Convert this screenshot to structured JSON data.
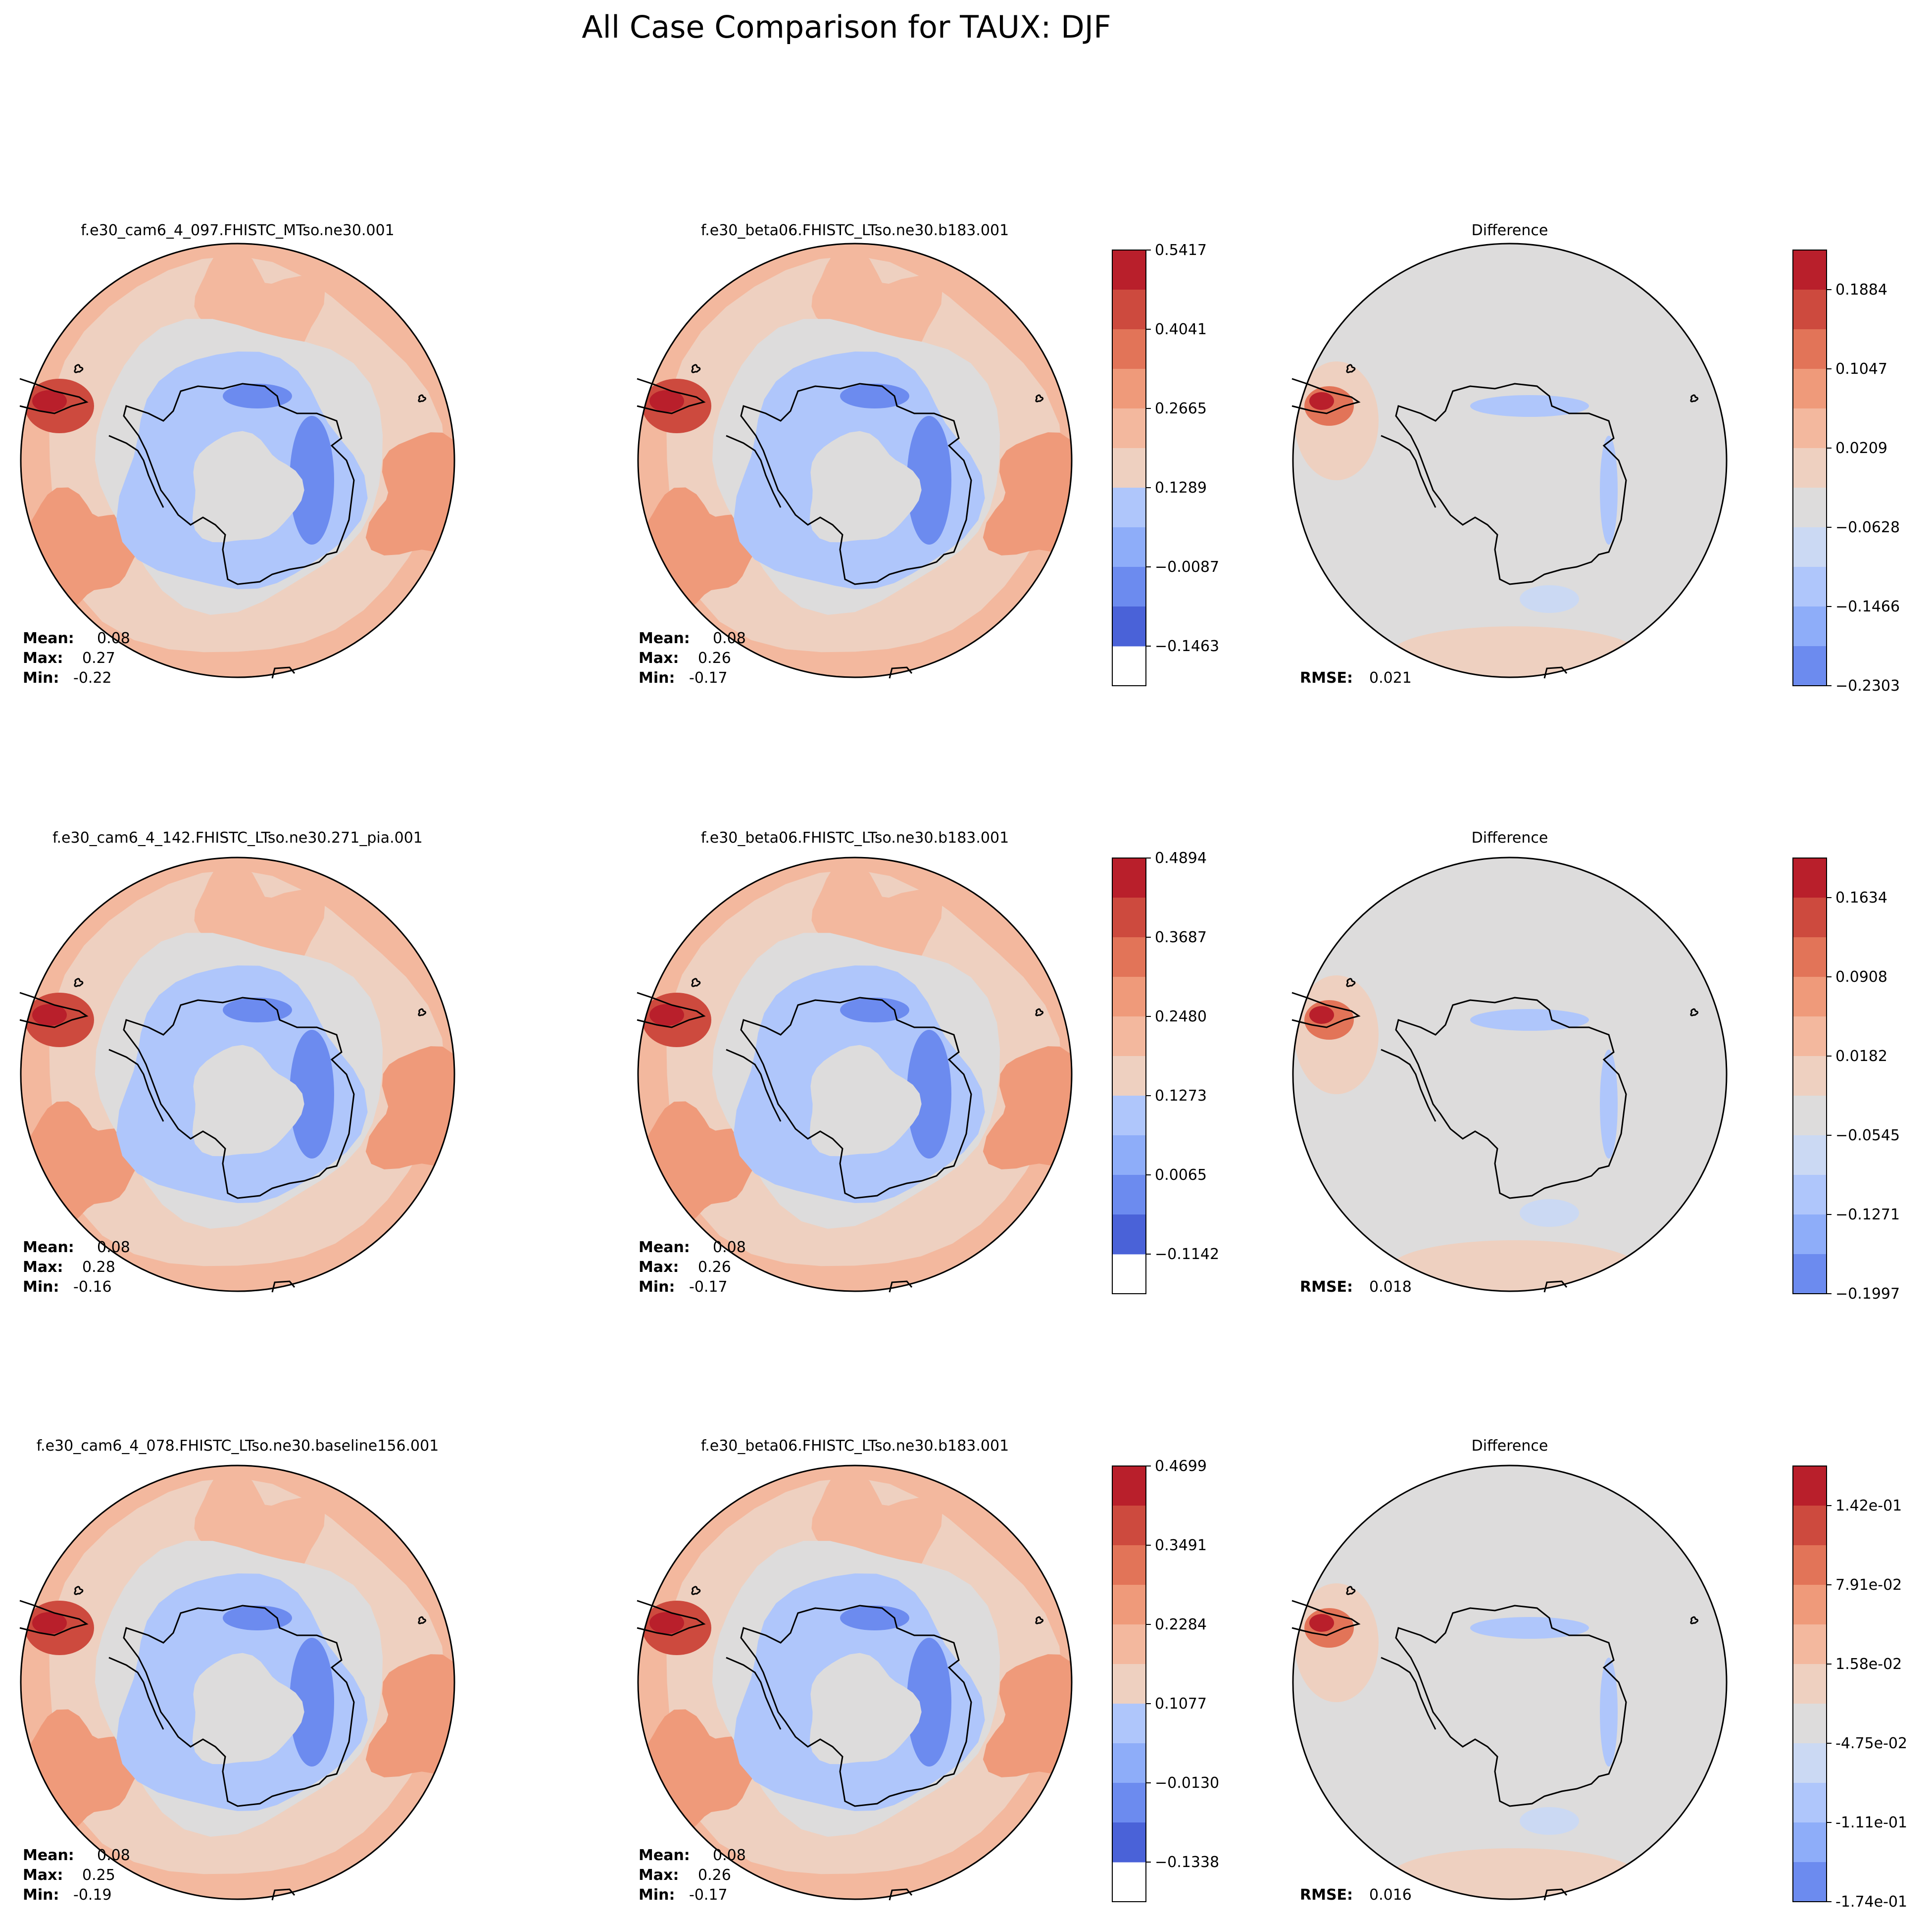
{
  "figure_title": "All Case Comparison for TAUX: DJF",
  "stat_labels": {
    "mean": "Mean:",
    "max": "Max:",
    "min": "Min:",
    "rmse": "RMSE:"
  },
  "colors": {
    "neg": [
      "#4a62d8",
      "#6c8bef",
      "#8eadf9",
      "#afc6fb",
      "#cbd9f3"
    ],
    "neutral": "#dddcdc",
    "pos": [
      "#eed0c0",
      "#f3b89e",
      "#ef9a7a",
      "#e27458",
      "#cd4a3e",
      "#b91f2b"
    ],
    "coast": "#000000"
  },
  "chart_data": [
    {
      "type": "heatmap",
      "row": 1,
      "title": "f.e30_cam6_4_097.FHISTC_MTso.ne30.001",
      "stats": {
        "mean": "0.08",
        "max": "0.27",
        "min": "-0.22"
      }
    },
    {
      "type": "heatmap",
      "row": 1,
      "title": "f.e30_beta06.FHISTC_LTso.ne30.b183.001",
      "stats": {
        "mean": "0.08",
        "max": "0.26",
        "min": "-0.17"
      },
      "colorbar_ticks": [
        "0.5417",
        "0.4041",
        "0.2665",
        "0.1289",
        "−0.0087",
        "−0.1463"
      ]
    },
    {
      "type": "heatmap",
      "row": 1,
      "title": "Difference",
      "stats": {
        "rmse": "0.021"
      },
      "colorbar_ticks": [
        "0.1884",
        "0.1047",
        "0.0209",
        "−0.0628",
        "−0.1466",
        "−0.2303"
      ]
    },
    {
      "type": "heatmap",
      "row": 2,
      "title": "f.e30_cam6_4_142.FHISTC_LTso.ne30.271_pia.001",
      "stats": {
        "mean": "0.08",
        "max": "0.28",
        "min": "-0.16"
      }
    },
    {
      "type": "heatmap",
      "row": 2,
      "title": "f.e30_beta06.FHISTC_LTso.ne30.b183.001",
      "stats": {
        "mean": "0.08",
        "max": "0.26",
        "min": "-0.17"
      },
      "colorbar_ticks": [
        "0.4894",
        "0.3687",
        "0.2480",
        "0.1273",
        "0.0065",
        "−0.1142"
      ]
    },
    {
      "type": "heatmap",
      "row": 2,
      "title": "Difference",
      "stats": {
        "rmse": "0.018"
      },
      "colorbar_ticks": [
        "0.1634",
        "0.0908",
        "0.0182",
        "−0.0545",
        "−0.1271",
        "−0.1997"
      ]
    },
    {
      "type": "heatmap",
      "row": 3,
      "title": "f.e30_cam6_4_078.FHISTC_LTso.ne30.baseline156.001",
      "stats": {
        "mean": "0.08",
        "max": "0.25",
        "min": "-0.19"
      }
    },
    {
      "type": "heatmap",
      "row": 3,
      "title": "f.e30_beta06.FHISTC_LTso.ne30.b183.001",
      "stats": {
        "mean": "0.08",
        "max": "0.26",
        "min": "-0.17"
      },
      "colorbar_ticks": [
        "0.4699",
        "0.3491",
        "0.2284",
        "0.1077",
        "−0.0130",
        "−0.1338"
      ]
    },
    {
      "type": "heatmap",
      "row": 3,
      "title": "Difference",
      "stats": {
        "rmse": "0.016"
      },
      "colorbar_ticks": [
        "1.42e-01",
        "7.91e-02",
        "1.58e-02",
        "-4.75e-02",
        "-1.11e-01",
        "-1.74e-01"
      ]
    }
  ]
}
